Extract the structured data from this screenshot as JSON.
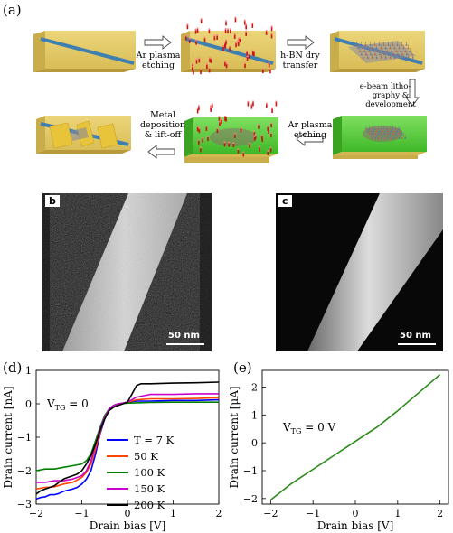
{
  "panel_labels": {
    "a": "(a)",
    "b": "b",
    "c": "c",
    "d": "(d)",
    "e": "(e)"
  },
  "process_steps": {
    "step1": "Ar plasma\netching",
    "step2": "h-BN dry\ntransfer",
    "step3": "e-beam litho-\ngraphy &\ndevelopment",
    "step4": "Ar plasma\netching",
    "step5": "Metal\ndeposition\n& lift-off"
  },
  "micrographs": {
    "b": {
      "scale": "50 nm"
    },
    "c": {
      "scale": "50 nm"
    }
  },
  "colors": {
    "substrate": "#e8cf6d",
    "nanowire": "#3f7fb0",
    "resist": "#55c838",
    "particles": "#c81414",
    "metal": "#e8c43a"
  },
  "chart_data": [
    {
      "id": "d",
      "type": "line",
      "xlabel": "Drain bias [V]",
      "ylabel": "Drain current [nA]",
      "annotation": "V_TG = 0",
      "xlim": [
        -2,
        2
      ],
      "ylim": [
        -3,
        1
      ],
      "xticks": [
        -2,
        -1,
        0,
        1,
        2
      ],
      "yticks": [
        -3,
        -2,
        -1,
        0,
        1
      ],
      "legend_position": "lower-right",
      "series": [
        {
          "name": "T = 7 K",
          "color": "#0000ff",
          "x": [
            -2,
            -1.9,
            -1.8,
            -1.7,
            -1.6,
            -1.5,
            -1.4,
            -1.3,
            -1.2,
            -1.1,
            -1.0,
            -0.9,
            -0.8,
            -0.7,
            -0.6,
            -0.5,
            -0.4,
            -0.3,
            -0.2,
            -0.1,
            0,
            0.2,
            0.5,
            1,
            1.5,
            2
          ],
          "y": [
            -2.85,
            -2.8,
            -2.78,
            -2.72,
            -2.72,
            -2.68,
            -2.62,
            -2.58,
            -2.55,
            -2.5,
            -2.4,
            -2.25,
            -2.0,
            -1.5,
            -0.9,
            -0.45,
            -0.15,
            -0.05,
            0,
            0.02,
            0.05,
            0.08,
            0.08,
            0.1,
            0.1,
            0.12
          ]
        },
        {
          "name": "50 K",
          "color": "#ff4500",
          "x": [
            -2,
            -1.8,
            -1.6,
            -1.4,
            -1.2,
            -1.0,
            -0.9,
            -0.8,
            -0.7,
            -0.6,
            -0.5,
            -0.4,
            -0.3,
            -0.2,
            -0.1,
            0,
            0.2,
            0.5,
            1,
            1.5,
            2
          ],
          "y": [
            -2.55,
            -2.5,
            -2.48,
            -2.4,
            -2.35,
            -2.2,
            -2.05,
            -1.8,
            -1.35,
            -0.85,
            -0.4,
            -0.15,
            -0.05,
            0,
            0.02,
            0.05,
            0.12,
            0.15,
            0.15,
            0.16,
            0.18
          ]
        },
        {
          "name": "100 K",
          "color": "#008000",
          "x": [
            -2,
            -1.8,
            -1.6,
            -1.4,
            -1.2,
            -1.0,
            -0.9,
            -0.8,
            -0.7,
            -0.6,
            -0.5,
            -0.4,
            -0.3,
            -0.2,
            -0.1,
            0,
            0.2,
            0.5,
            1,
            1.5,
            2
          ],
          "y": [
            -2.0,
            -1.95,
            -1.95,
            -1.9,
            -1.85,
            -1.8,
            -1.7,
            -1.5,
            -1.1,
            -0.7,
            -0.35,
            -0.15,
            -0.05,
            0,
            0.01,
            0.02,
            0.03,
            0.04,
            0.05,
            0.05,
            0.05
          ]
        },
        {
          "name": "150 K",
          "color": "#cc00cc",
          "x": [
            -2,
            -1.8,
            -1.6,
            -1.4,
            -1.2,
            -1.0,
            -0.9,
            -0.8,
            -0.7,
            -0.6,
            -0.5,
            -0.4,
            -0.3,
            -0.2,
            -0.1,
            0,
            0.2,
            0.5,
            1,
            1.5,
            2
          ],
          "y": [
            -2.35,
            -2.35,
            -2.3,
            -2.3,
            -2.25,
            -2.15,
            -2.0,
            -1.7,
            -1.2,
            -0.75,
            -0.4,
            -0.15,
            -0.05,
            0,
            0.02,
            0.05,
            0.2,
            0.28,
            0.28,
            0.3,
            0.3
          ]
        },
        {
          "name": "200 K",
          "color": "#000000",
          "x": [
            -2,
            -1.9,
            -1.8,
            -1.7,
            -1.6,
            -1.5,
            -1.4,
            -1.3,
            -1.2,
            -1.1,
            -1.0,
            -0.9,
            -0.8,
            -0.7,
            -0.6,
            -0.5,
            -0.4,
            -0.3,
            -0.2,
            -0.1,
            0,
            0.1,
            0.2,
            0.3,
            0.5,
            1,
            1.5,
            2
          ],
          "y": [
            -2.7,
            -2.6,
            -2.55,
            -2.5,
            -2.45,
            -2.35,
            -2.25,
            -2.2,
            -2.15,
            -2.1,
            -2.0,
            -1.8,
            -1.55,
            -1.2,
            -0.8,
            -0.45,
            -0.2,
            -0.1,
            -0.05,
            0,
            0.05,
            0.3,
            0.55,
            0.6,
            0.6,
            0.62,
            0.63,
            0.65
          ]
        }
      ]
    },
    {
      "id": "e",
      "type": "line",
      "xlabel": "Drain bias [V]",
      "ylabel": "Drain current [μA]",
      "annotation": "V_TG = 0 V",
      "xlim": [
        -2.2,
        2.2
      ],
      "ylim": [
        -2.2,
        2.6
      ],
      "xticks": [
        -2,
        -1,
        0,
        1,
        2
      ],
      "yticks": [
        -2,
        -1,
        0,
        1,
        2
      ],
      "series": [
        {
          "color": "#2a8a1a",
          "x": [
            -2,
            -1.5,
            -1,
            -0.5,
            0,
            0.5,
            1,
            1.5,
            2
          ],
          "y": [
            -2.05,
            -1.45,
            -0.95,
            -0.45,
            0.05,
            0.55,
            1.15,
            1.8,
            2.45
          ]
        }
      ]
    }
  ]
}
